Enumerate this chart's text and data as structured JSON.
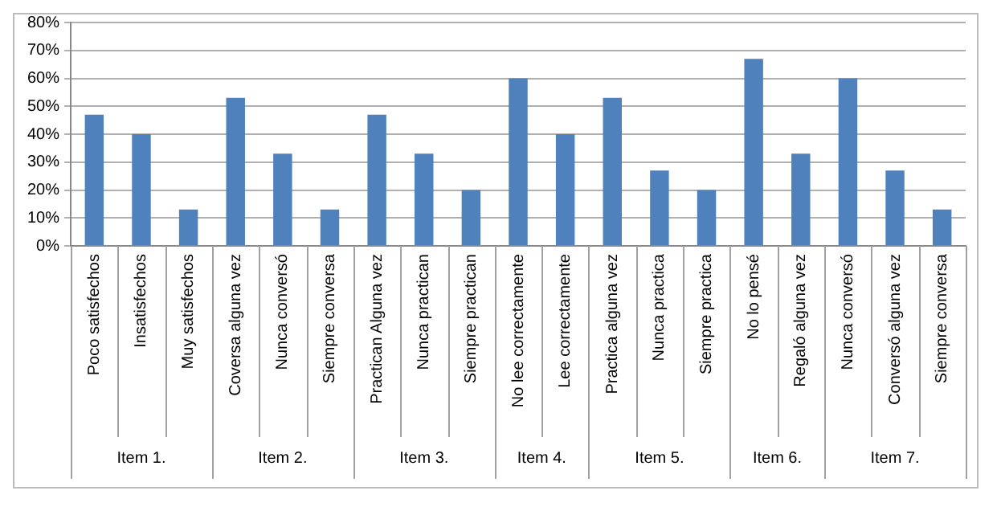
{
  "chart_data": {
    "type": "bar",
    "categories": [
      "Poco satisfechos",
      "Insatisfechos",
      "Muy satisfechos",
      "Coversa alguna vez",
      "Nunca conversó",
      "Siempre conversa",
      "Practican Alguna vez",
      "Nunca practican",
      "Siempre practican",
      "No lee correctamente",
      "Lee correctamente",
      "Practica alguna vez",
      "Nunca practica",
      "Siempre practica",
      "No lo pensé",
      "Regaló alguna vez",
      "Nunca conversó",
      "Conversó alguna vez",
      "Siempre conversa"
    ],
    "values": [
      47,
      40,
      13,
      53,
      33,
      13,
      47,
      33,
      20,
      60,
      40,
      53,
      27,
      20,
      67,
      33,
      60,
      27,
      13
    ],
    "color": "#4f81bd",
    "ylim": [
      0,
      80
    ],
    "yticks": [
      {
        "value": 0,
        "label": "0%"
      },
      {
        "value": 10,
        "label": "10%"
      },
      {
        "value": 20,
        "label": "20%"
      },
      {
        "value": 30,
        "label": "30%"
      },
      {
        "value": 40,
        "label": "40%"
      },
      {
        "value": 50,
        "label": "50%"
      },
      {
        "value": 60,
        "label": "60%"
      },
      {
        "value": 70,
        "label": "70%"
      },
      {
        "value": 80,
        "label": "80%"
      }
    ],
    "grid": "y",
    "legend": false,
    "annotations": [
      "Item 1.",
      "Item 2.",
      "Item 3.",
      "Item 4.",
      "Item 5.",
      "Item 6.",
      "Item 7."
    ]
  }
}
